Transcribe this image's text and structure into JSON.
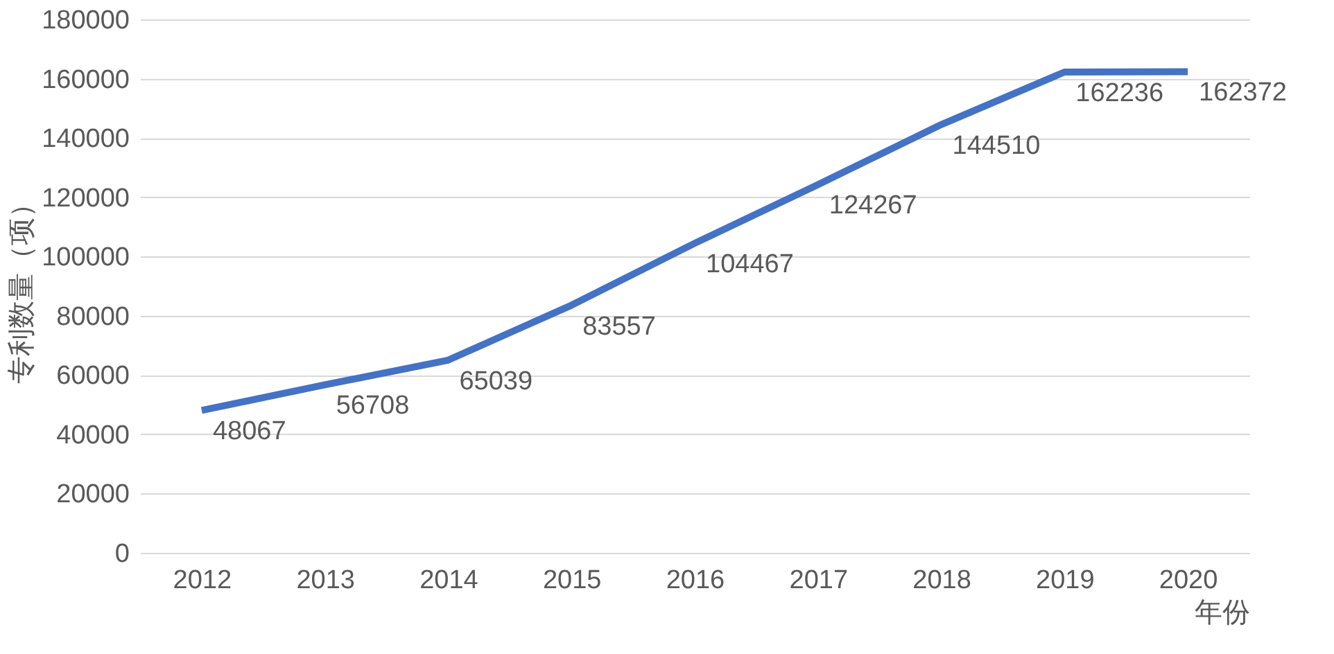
{
  "chart_data": {
    "type": "line",
    "xlabel": "年份",
    "ylabel": "专利数量（项）",
    "categories": [
      "2012",
      "2013",
      "2014",
      "2015",
      "2016",
      "2017",
      "2018",
      "2019",
      "2020"
    ],
    "series": [
      {
        "color": "#4472c4",
        "values": [
          48067,
          56708,
          65039,
          83557,
          104467,
          124267,
          144510,
          162236,
          162372
        ]
      }
    ],
    "ylim": [
      0,
      180000
    ],
    "yticks": [
      0,
      20000,
      40000,
      60000,
      80000,
      100000,
      120000,
      140000,
      160000,
      180000
    ],
    "grid": "y",
    "data_labels": true,
    "marker": "none",
    "line_style": "solid"
  }
}
